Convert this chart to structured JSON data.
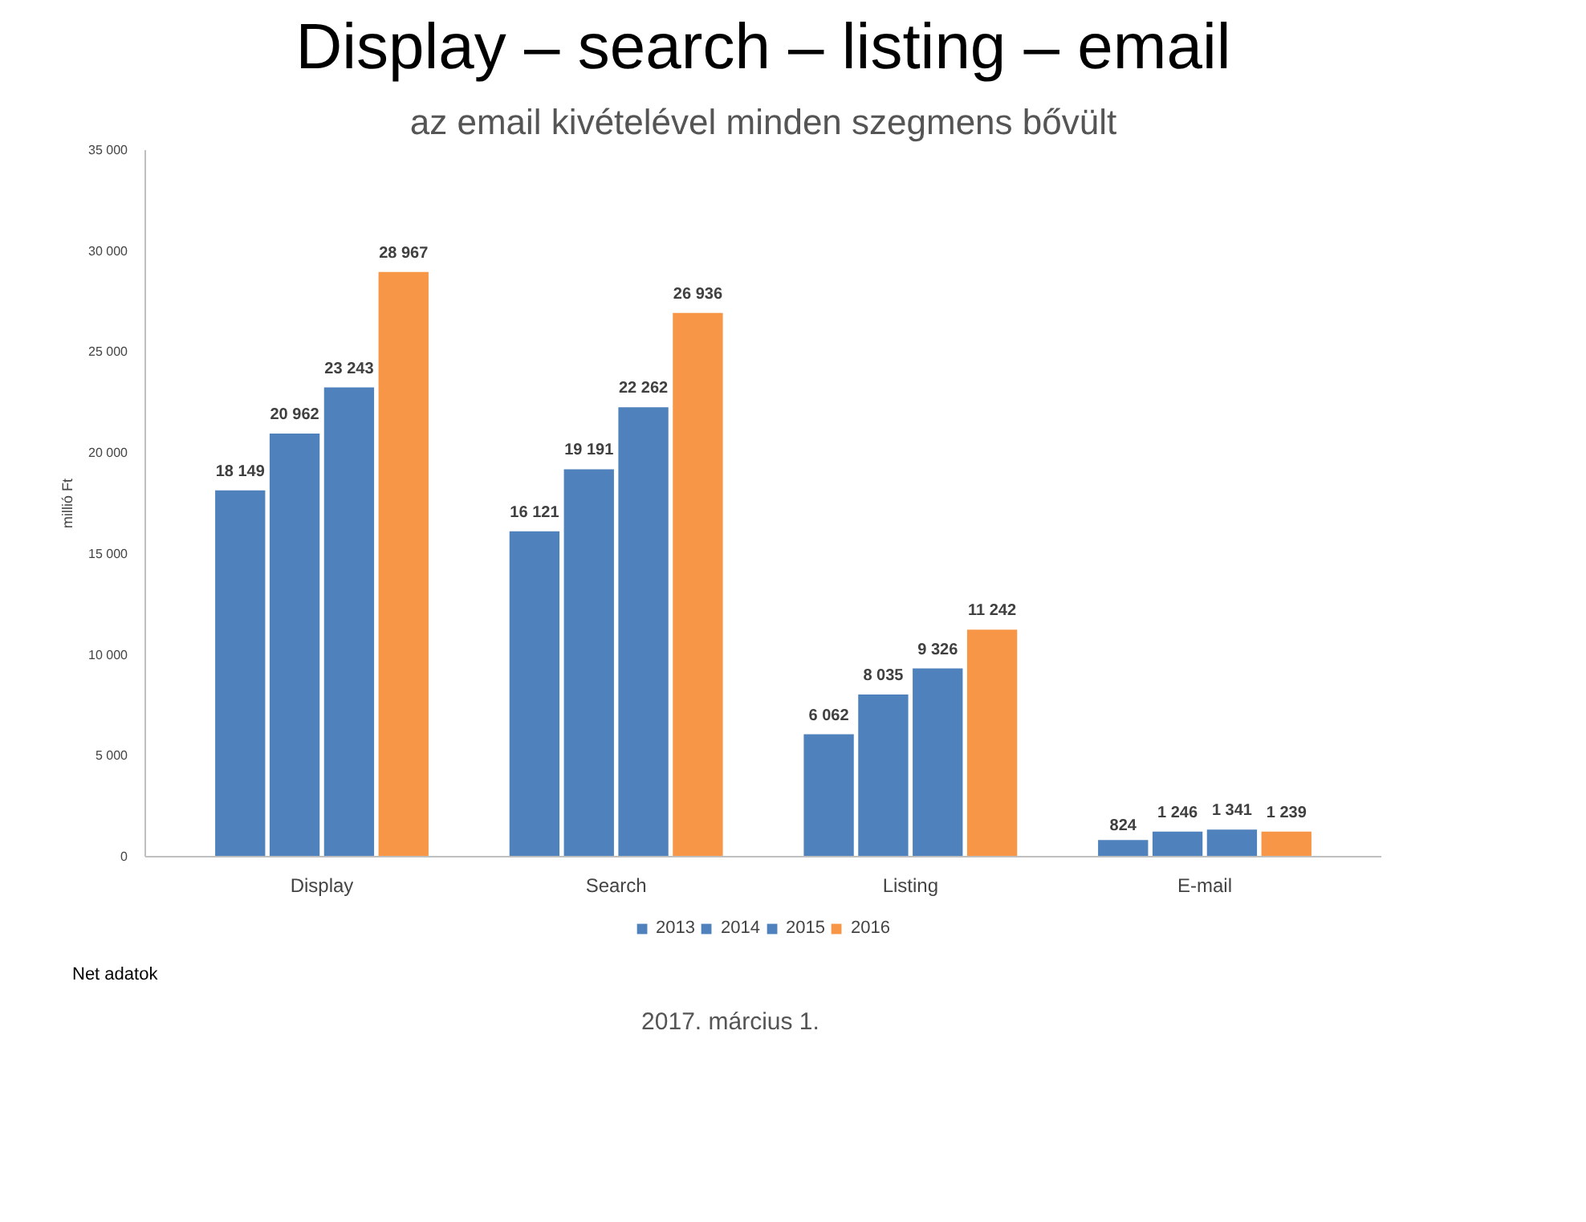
{
  "chart_data": {
    "type": "bar",
    "title": "Display – search – listing – email",
    "subtitle": "az email kivételével minden szegmens bővült",
    "ylabel": "millió Ft",
    "categories": [
      "Display",
      "Search",
      "Listing",
      "E-mail"
    ],
    "series": [
      {
        "name": "2013",
        "color": "#4f81bd",
        "values": [
          18149,
          16121,
          6062,
          824
        ]
      },
      {
        "name": "2014",
        "color": "#4f81bd",
        "values": [
          20962,
          19191,
          8035,
          1246
        ]
      },
      {
        "name": "2015",
        "color": "#4f81bd",
        "values": [
          23243,
          22262,
          9326,
          1341
        ]
      },
      {
        "name": "2016",
        "color": "#f79646",
        "values": [
          28967,
          26936,
          11242,
          1239
        ]
      }
    ],
    "ylim": [
      0,
      35000
    ],
    "yticks": [
      0,
      {
        "value": 5000,
        "label": "5 000"
      },
      {
        "value": 10000,
        "label": "10 000"
      },
      {
        "value": 15000,
        "label": "15 000"
      },
      {
        "value": 20000,
        "label": "20 000"
      },
      {
        "value": 25000,
        "label": "25 000"
      },
      {
        "value": 30000,
        "label": "30 000"
      },
      {
        "value": 35000,
        "label": "35 000"
      }
    ],
    "data_labels": true,
    "grid": false,
    "legend": "bottom",
    "annotations": [
      "Net adatok",
      "2017. március 1."
    ]
  }
}
